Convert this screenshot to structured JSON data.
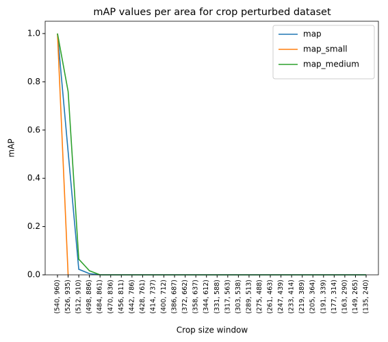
{
  "chart_data": {
    "type": "line",
    "title": "mAP values per area for crop perturbed dataset",
    "x_label": "Crop size window",
    "y_label": "mAP",
    "categories": [
      "(540, 960)",
      "(526, 935)",
      "(512, 910)",
      "(498, 886)",
      "(484, 861)",
      "(470, 836)",
      "(456, 811)",
      "(442, 786)",
      "(428, 761)",
      "(414, 737)",
      "(400, 712)",
      "(386, 687)",
      "(372, 662)",
      "(358, 637)",
      "(344, 612)",
      "(331, 588)",
      "(317, 563)",
      "(303, 538)",
      "(289, 513)",
      "(275, 488)",
      "(261, 463)",
      "(247, 439)",
      "(233, 414)",
      "(219, 389)",
      "(205, 364)",
      "(191, 339)",
      "(177, 314)",
      "(163, 290)",
      "(149, 265)",
      "(135, 240)"
    ],
    "series": [
      {
        "name": "map",
        "color": "#1f77b4",
        "values": [
          1.0,
          0.51,
          0.023,
          0.005,
          0,
          0,
          0,
          0,
          0,
          0,
          0,
          0,
          0,
          0,
          0,
          0,
          0,
          0,
          0,
          0,
          0,
          0,
          0,
          0,
          0,
          0,
          0,
          0,
          0,
          0
        ]
      },
      {
        "name": "map_small",
        "color": "#ff7f0e",
        "values": [
          1.0,
          0.0,
          null,
          null,
          null,
          null,
          null,
          null,
          null,
          null,
          null,
          null,
          null,
          null,
          null,
          null,
          null,
          null,
          null,
          null,
          null,
          null,
          null,
          null,
          null,
          null,
          null,
          null,
          null,
          null
        ]
      },
      {
        "name": "map_medium",
        "color": "#2ca02c",
        "values": [
          1.0,
          0.76,
          0.065,
          0.017,
          0,
          0,
          0,
          0,
          0,
          0,
          0,
          0,
          0,
          0,
          0,
          0,
          0,
          0,
          0,
          0,
          0,
          0,
          0,
          0,
          0,
          0,
          0,
          0,
          0,
          0
        ]
      }
    ],
    "ylim": [
      0,
      1.051
    ],
    "yticks": [
      {
        "value": 0,
        "label": "0.0"
      },
      {
        "value": 0.2,
        "label": "0.2"
      },
      {
        "value": 0.4,
        "label": "0.4"
      },
      {
        "value": 0.6,
        "label": "0.6"
      },
      {
        "value": 0.8,
        "label": "0.8"
      },
      {
        "value": 1.0,
        "label": "1.0"
      }
    ],
    "legend": "upper right"
  }
}
